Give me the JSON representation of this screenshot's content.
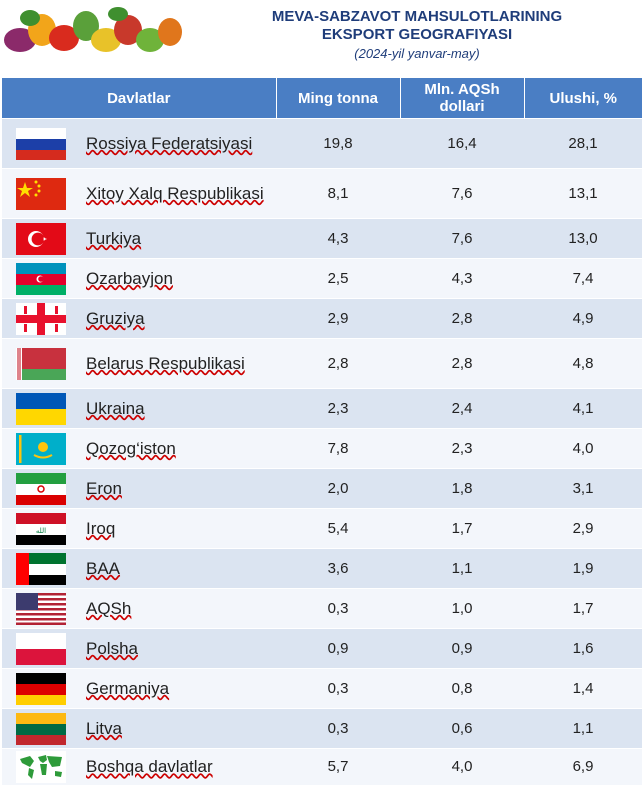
{
  "title_line1": "MEVA-SABZAVOT MAHSULOTLARINING",
  "title_line2": "EKSPORT GEOGRAFIYASI",
  "subtitle": "(2024-yil yanvar-may)",
  "headers": {
    "country": "Davlatlar",
    "tonnes": "Ming tonna",
    "usd": "Mln. AQSh dollari",
    "share": "Ulushi, %"
  },
  "rows": [
    {
      "flag": "russia-flag-icon",
      "name": "Rossiya Federatsiyasi",
      "tonnes": "19,8",
      "usd": "16,4",
      "share": "28,1"
    },
    {
      "flag": "china-flag-icon",
      "name": "Xitoy Xalq Respublikasi",
      "tonnes": "8,1",
      "usd": "7,6",
      "share": "13,1"
    },
    {
      "flag": "turkey-flag-icon",
      "name": "Turkiya",
      "tonnes": "4,3",
      "usd": "7,6",
      "share": "13,0"
    },
    {
      "flag": "azerbaijan-flag-icon",
      "name": "Ozarbayjon",
      "tonnes": "2,5",
      "usd": "4,3",
      "share": "7,4"
    },
    {
      "flag": "georgia-flag-icon",
      "name": "Gruziya",
      "tonnes": "2,9",
      "usd": "2,8",
      "share": "4,9"
    },
    {
      "flag": "belarus-flag-icon",
      "name": "Belarus Respublikasi",
      "tonnes": "2,8",
      "usd": "2,8",
      "share": "4,8"
    },
    {
      "flag": "ukraine-flag-icon",
      "name": "Ukraina",
      "tonnes": "2,3",
      "usd": "2,4",
      "share": "4,1"
    },
    {
      "flag": "kazakhstan-flag-icon",
      "name": "Qozog‘iston",
      "tonnes": "7,8",
      "usd": "2,3",
      "share": "4,0"
    },
    {
      "flag": "iran-flag-icon",
      "name": "Eron",
      "tonnes": "2,0",
      "usd": "1,8",
      "share": "3,1"
    },
    {
      "flag": "iraq-flag-icon",
      "name": "Iroq",
      "tonnes": "5,4",
      "usd": "1,7",
      "share": "2,9"
    },
    {
      "flag": "uae-flag-icon",
      "name": "BAA",
      "tonnes": "3,6",
      "usd": "1,1",
      "share": "1,9"
    },
    {
      "flag": "usa-flag-icon",
      "name": "AQSh",
      "tonnes": "0,3",
      "usd": "1,0",
      "share": "1,7"
    },
    {
      "flag": "poland-flag-icon",
      "name": "Polsha",
      "tonnes": "0,9",
      "usd": "0,9",
      "share": "1,6"
    },
    {
      "flag": "germany-flag-icon",
      "name": "Germaniya",
      "tonnes": "0,3",
      "usd": "0,8",
      "share": "1,4"
    },
    {
      "flag": "lithuania-flag-icon",
      "name": "Litva",
      "tonnes": "0,3",
      "usd": "0,6",
      "share": "1,1"
    },
    {
      "flag": "world-map-icon",
      "name": "Boshqa davlatlar",
      "tonnes": "5,7",
      "usd": "4,0",
      "share": "6,9"
    }
  ]
}
